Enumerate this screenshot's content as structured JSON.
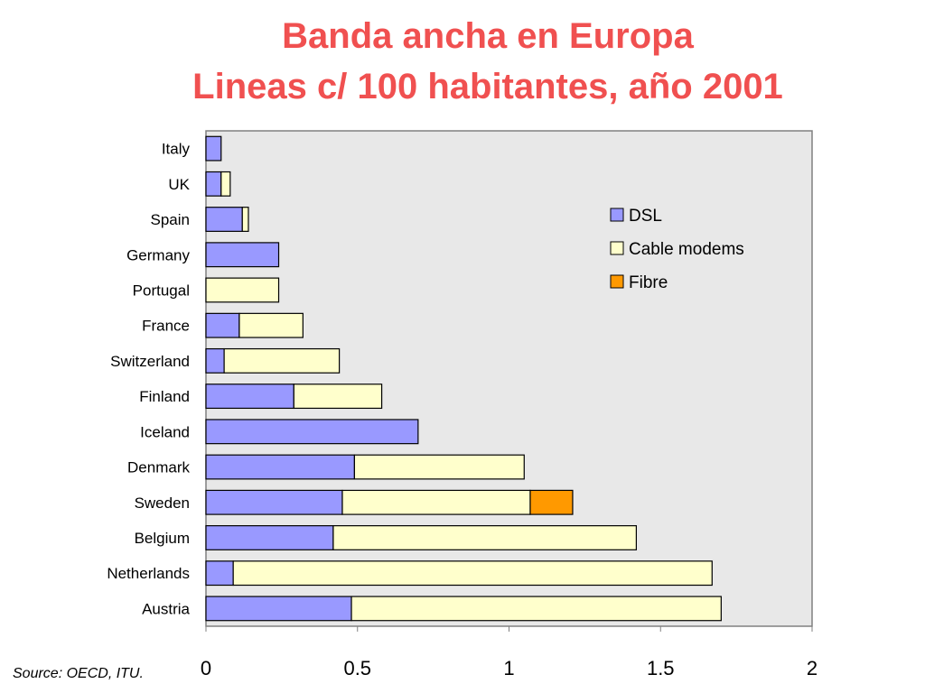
{
  "chart_data": {
    "type": "bar",
    "orientation": "horizontal",
    "stacked": true,
    "title": "Banda ancha en Europa",
    "subtitle": "Lineas c/ 100 habitantes, año 2001",
    "xlim": [
      0,
      2
    ],
    "x_ticks": [
      "0",
      "0.5",
      "1",
      "1.5",
      "2"
    ],
    "x_tick_values": [
      0,
      0.5,
      1,
      1.5,
      2
    ],
    "grid": false,
    "legend_position": "top-right",
    "categories": [
      "Italy",
      "UK",
      "Spain",
      "Germany",
      "Portugal",
      "France",
      "Switzerland",
      "Finland",
      "Iceland",
      "Denmark",
      "Sweden",
      "Belgium",
      "Netherlands",
      "Austria"
    ],
    "series": [
      {
        "name": "DSL",
        "color": "#9999ff",
        "values": [
          0.05,
          0.05,
          0.12,
          0.24,
          0.0,
          0.11,
          0.06,
          0.29,
          0.7,
          0.49,
          0.45,
          0.42,
          0.09,
          0.48
        ]
      },
      {
        "name": "Cable modems",
        "color": "#ffffcc",
        "values": [
          0.0,
          0.03,
          0.02,
          0.0,
          0.24,
          0.21,
          0.38,
          0.29,
          0.0,
          0.56,
          0.62,
          1.0,
          1.58,
          1.22
        ]
      },
      {
        "name": "Fibre",
        "color": "#ff9900",
        "values": [
          0,
          0,
          0,
          0,
          0,
          0,
          0,
          0,
          0,
          0,
          0.14,
          0,
          0,
          0
        ]
      }
    ]
  },
  "footer": {
    "source": "Source: OECD, ITU."
  }
}
